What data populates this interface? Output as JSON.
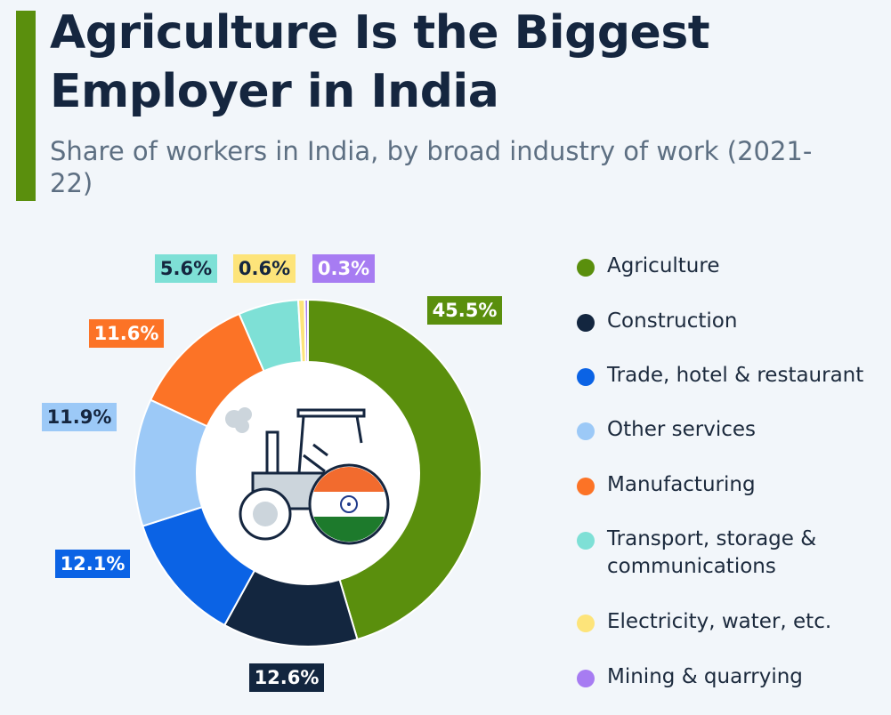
{
  "header": {
    "title": "Agriculture Is the Biggest Employer in India",
    "subtitle": "Share of workers in India, by broad industry of work (2021-22)"
  },
  "colors": {
    "accent": "#5a8f0d",
    "title": "#15263f",
    "subtitle": "#5d6f82",
    "background": "#f2f6fa"
  },
  "chart_data": {
    "type": "pie",
    "variant": "donut",
    "title": "Agriculture Is the Biggest Employer in India",
    "subtitle": "Share of workers in India, by broad industry of work (2021-22)",
    "unit": "%",
    "legend_position": "right",
    "center_illustration": "tractor-with-india-flag",
    "series": [
      {
        "name": "Agriculture",
        "value": 45.5,
        "label": "45.5%",
        "color": "#5a8f0d",
        "label_bg": "#5a8f0d",
        "label_fg": "#ffffff"
      },
      {
        "name": "Construction",
        "value": 12.6,
        "label": "12.6%",
        "color": "#13263f",
        "label_bg": "#13263f",
        "label_fg": "#ffffff"
      },
      {
        "name": "Trade, hotel & restaurant",
        "value": 12.1,
        "label": "12.1%",
        "color": "#0b63e5",
        "label_bg": "#0b63e5",
        "label_fg": "#ffffff"
      },
      {
        "name": "Other services",
        "value": 11.9,
        "label": "11.9%",
        "color": "#9cc9f7",
        "label_bg": "#9cc9f7",
        "label_fg": "#15263f"
      },
      {
        "name": "Manufacturing",
        "value": 11.6,
        "label": "11.6%",
        "color": "#fc7326",
        "label_bg": "#fc7326",
        "label_fg": "#ffffff"
      },
      {
        "name": "Transport, storage & communications",
        "value": 5.6,
        "label": "5.6%",
        "color": "#7ee0d6",
        "label_bg": "#7ee0d6",
        "label_fg": "#15263f"
      },
      {
        "name": "Electricity, water, etc.",
        "value": 0.6,
        "label": "0.6%",
        "color": "#fde47a",
        "label_bg": "#fde47a",
        "label_fg": "#15263f"
      },
      {
        "name": "Mining & quarrying",
        "value": 0.3,
        "label": "0.3%",
        "color": "#a77cf2",
        "label_bg": "#a77cf2",
        "label_fg": "#ffffff"
      }
    ]
  },
  "legend": {
    "items": [
      {
        "label": "Agriculture",
        "color": "#5a8f0d"
      },
      {
        "label": "Construction",
        "color": "#13263f"
      },
      {
        "label": "Trade, hotel & restaurant",
        "color": "#0b63e5"
      },
      {
        "label": "Other services",
        "color": "#9cc9f7"
      },
      {
        "label": "Manufacturing",
        "color": "#fc7326"
      },
      {
        "label": "Transport, storage &\ncommunications",
        "color": "#7ee0d6"
      },
      {
        "label": "Electricity, water, etc.",
        "color": "#fde47a"
      },
      {
        "label": "Mining & quarrying",
        "color": "#a77cf2"
      }
    ]
  }
}
